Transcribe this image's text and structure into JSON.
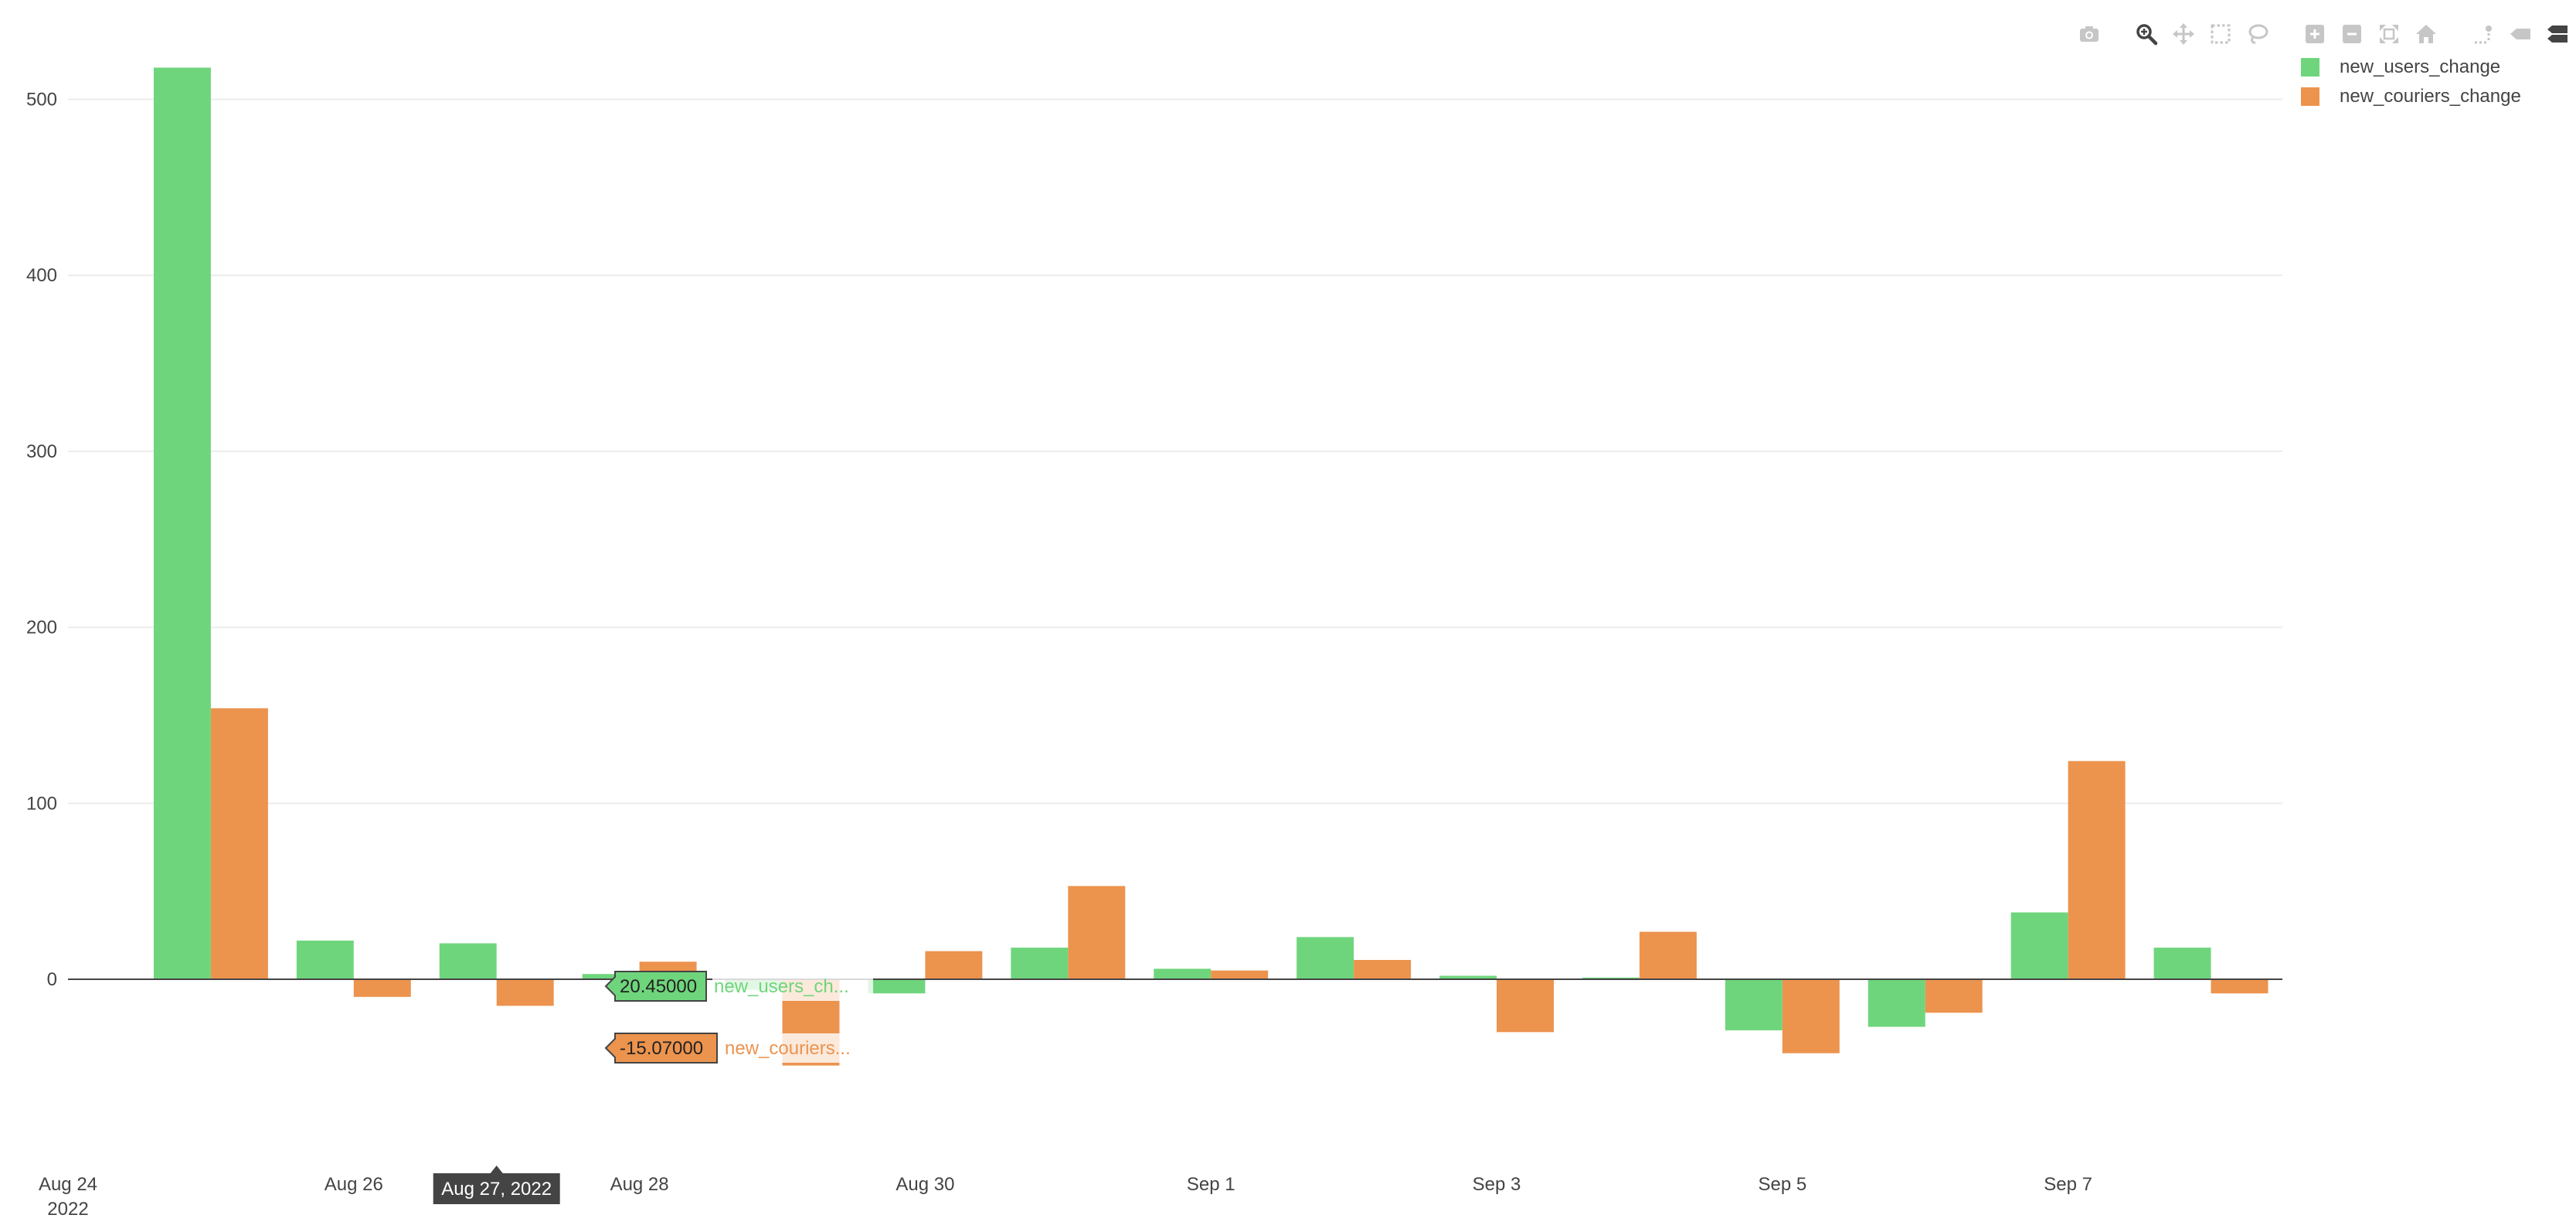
{
  "chart_data": {
    "type": "bar",
    "x": [
      "Aug 25, 2022",
      "Aug 26, 2022",
      "Aug 27, 2022",
      "Aug 28, 2022",
      "Aug 29, 2022",
      "Aug 30, 2022",
      "Aug 31, 2022",
      "Sep 1, 2022",
      "Sep 2, 2022",
      "Sep 3, 2022",
      "Sep 4, 2022",
      "Sep 5, 2022",
      "Sep 6, 2022",
      "Sep 7, 2022",
      "Sep 8, 2022"
    ],
    "series": [
      {
        "name": "new_users_change",
        "color": "#6fd57c",
        "values": [
          518,
          22,
          20.45,
          3,
          -6,
          -8,
          18,
          6,
          24,
          2,
          1,
          -29,
          -27,
          38,
          18
        ]
      },
      {
        "name": "new_couriers_change",
        "color": "#ec934e",
        "values": [
          154,
          -10,
          -15.07,
          10,
          -49,
          16,
          53,
          5,
          11,
          -30,
          27,
          -42,
          -19,
          124,
          -8
        ]
      }
    ],
    "x_ticks": [
      {
        "date": "Aug 24, 2022",
        "label": "Aug 24",
        "sublabel": "2022"
      },
      {
        "date": "Aug 26, 2022",
        "label": "Aug 26"
      },
      {
        "date": "Aug 28, 2022",
        "label": "Aug 28"
      },
      {
        "date": "Aug 30, 2022",
        "label": "Aug 30"
      },
      {
        "date": "Sep 1, 2022",
        "label": "Sep 1"
      },
      {
        "date": "Sep 3, 2022",
        "label": "Sep 3"
      },
      {
        "date": "Sep 5, 2022",
        "label": "Sep 5"
      },
      {
        "date": "Sep 7, 2022",
        "label": "Sep 7"
      }
    ],
    "y_ticks": [
      0,
      100,
      200,
      300,
      400,
      500
    ],
    "xlim": [
      "Aug 24, 2022",
      "Sep 8, 2022"
    ],
    "ylim": [
      -90,
      545
    ],
    "grid": true,
    "legend_position": "top-right",
    "hover": {
      "x_label": "Aug 27, 2022",
      "points": [
        {
          "series_index": 0,
          "value_text": "20.45000",
          "name_text": "new_users_ch..."
        },
        {
          "series_index": 1,
          "value_text": "-15.07000",
          "name_text": "new_couriers..."
        }
      ]
    }
  },
  "modebar": {
    "groups": [
      [
        {
          "name": "camera-icon",
          "title": "Download plot as a png",
          "active": false
        }
      ],
      [
        {
          "name": "zoom-icon",
          "title": "Zoom",
          "active": true
        },
        {
          "name": "pan-icon",
          "title": "Pan",
          "active": false
        },
        {
          "name": "box-select-icon",
          "title": "Box Select",
          "active": false
        },
        {
          "name": "lasso-select-icon",
          "title": "Lasso Select",
          "active": false
        }
      ],
      [
        {
          "name": "zoom-in-icon",
          "title": "Zoom in",
          "active": false
        },
        {
          "name": "zoom-out-icon",
          "title": "Zoom out",
          "active": false
        },
        {
          "name": "autoscale-icon",
          "title": "Autoscale",
          "active": false
        },
        {
          "name": "reset-axes-icon",
          "title": "Reset axes",
          "active": false
        }
      ],
      [
        {
          "name": "spike-lines-icon",
          "title": "Toggle Spike Lines",
          "active": false
        },
        {
          "name": "hover-closest-icon",
          "title": "Show closest data on hover",
          "active": false
        },
        {
          "name": "hover-compare-icon",
          "title": "Compare data on hover",
          "active": true
        }
      ]
    ]
  }
}
